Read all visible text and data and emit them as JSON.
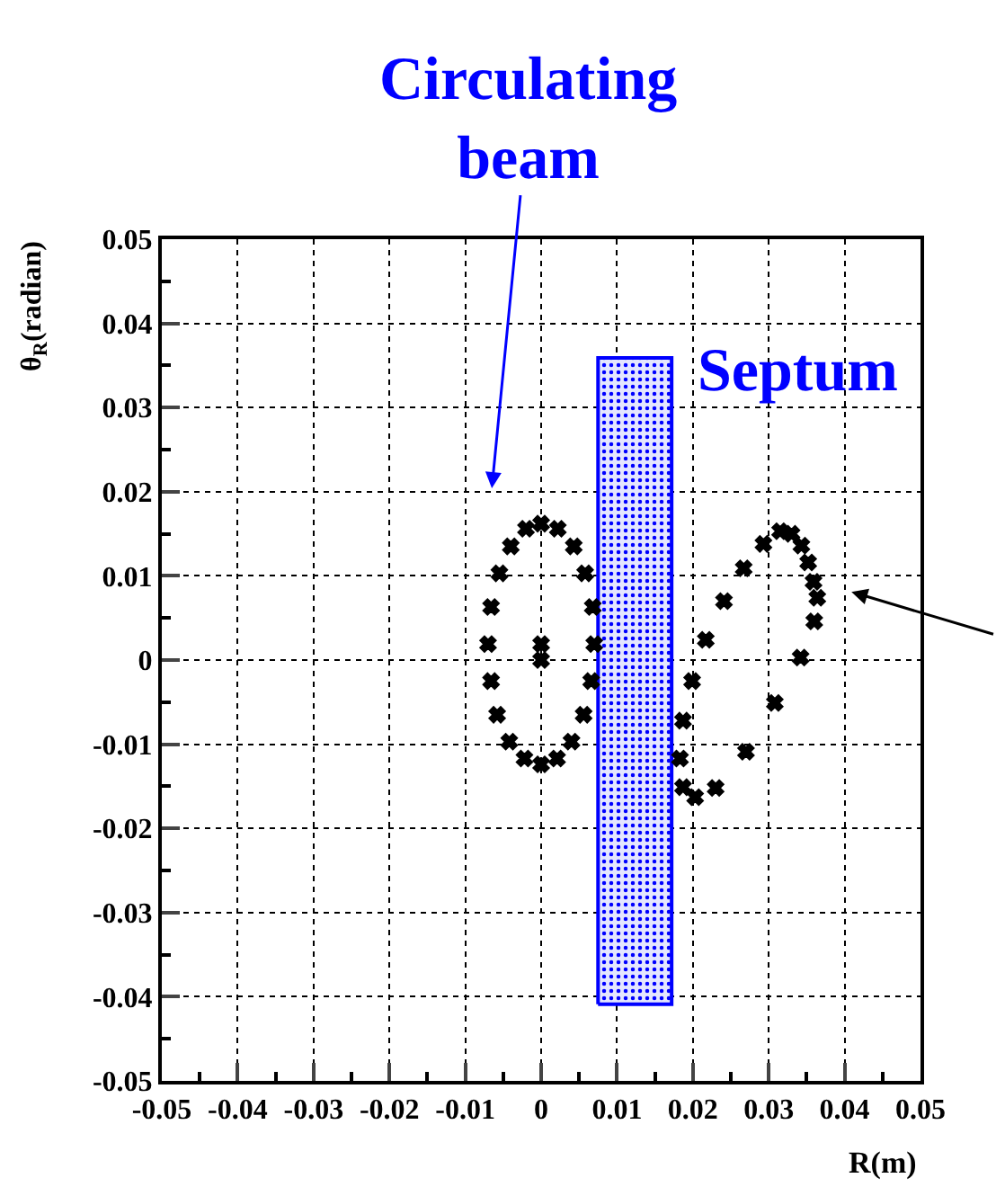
{
  "chart_data": {
    "type": "scatter",
    "xlabel": "R(m)",
    "ylabel": "θ$_{R}$(radian)",
    "xlim": [
      -0.05,
      0.05
    ],
    "ylim": [
      -0.05,
      0.05
    ],
    "xticks": [
      -0.05,
      -0.04,
      -0.03,
      -0.02,
      -0.01,
      0,
      0.01,
      0.02,
      0.03,
      0.04,
      0.05
    ],
    "yticks": [
      -0.05,
      -0.04,
      -0.03,
      -0.02,
      -0.01,
      0,
      0.01,
      0.02,
      0.03,
      0.04,
      0.05
    ],
    "grid": true,
    "marker": "cross",
    "series": [
      {
        "type": "area",
        "name": "Septum",
        "marker": "none",
        "color": "#0000ff",
        "x": [
          0.0075,
          0.0075,
          0.0172,
          0.0172,
          0.0075
        ],
        "values": [
          -0.0409,
          0.0359,
          0.0359,
          -0.0409,
          -0.0409
        ]
      },
      {
        "color": "#000000",
        "x": [
          0,
          -0.002,
          0.0022,
          -0.004,
          0.0043,
          -0.0055,
          0.0058,
          -0.0066,
          0.0068,
          -0.007,
          0.007,
          0,
          0,
          -0.0066,
          0.0066,
          -0.0058,
          0.0056,
          -0.0042,
          0.004,
          -0.0022,
          0.0021,
          0,
          0.0199,
          0.0187,
          0.0183,
          0.0187,
          0.0203,
          0.023,
          0.027,
          0.0308,
          0.0342,
          0.036,
          0.0364,
          0.0359,
          0.0352,
          0.0343,
          0.033,
          0.0315,
          0.0293,
          0.0267,
          0.0241,
          0.0217
        ],
        "values": [
          0.0162,
          0.0156,
          0.0156,
          0.0135,
          0.0135,
          0.0103,
          0.0103,
          0.0063,
          0.0063,
          0.0019,
          0.0019,
          0.0019,
          0,
          -0.0025,
          -0.0025,
          -0.0065,
          -0.0065,
          -0.0097,
          -0.0097,
          -0.0117,
          -0.0117,
          -0.0124,
          -0.0025,
          -0.0072,
          -0.0117,
          -0.0151,
          -0.0163,
          -0.0152,
          -0.0109,
          -0.0051,
          0.0003,
          0.0046,
          0.0074,
          0.0093,
          0.0116,
          0.0136,
          0.015,
          0.0153,
          0.0138,
          0.0109,
          0.007,
          0.0024
        ]
      }
    ],
    "annotations": [
      "Circulating\nbeam"
    ]
  }
}
